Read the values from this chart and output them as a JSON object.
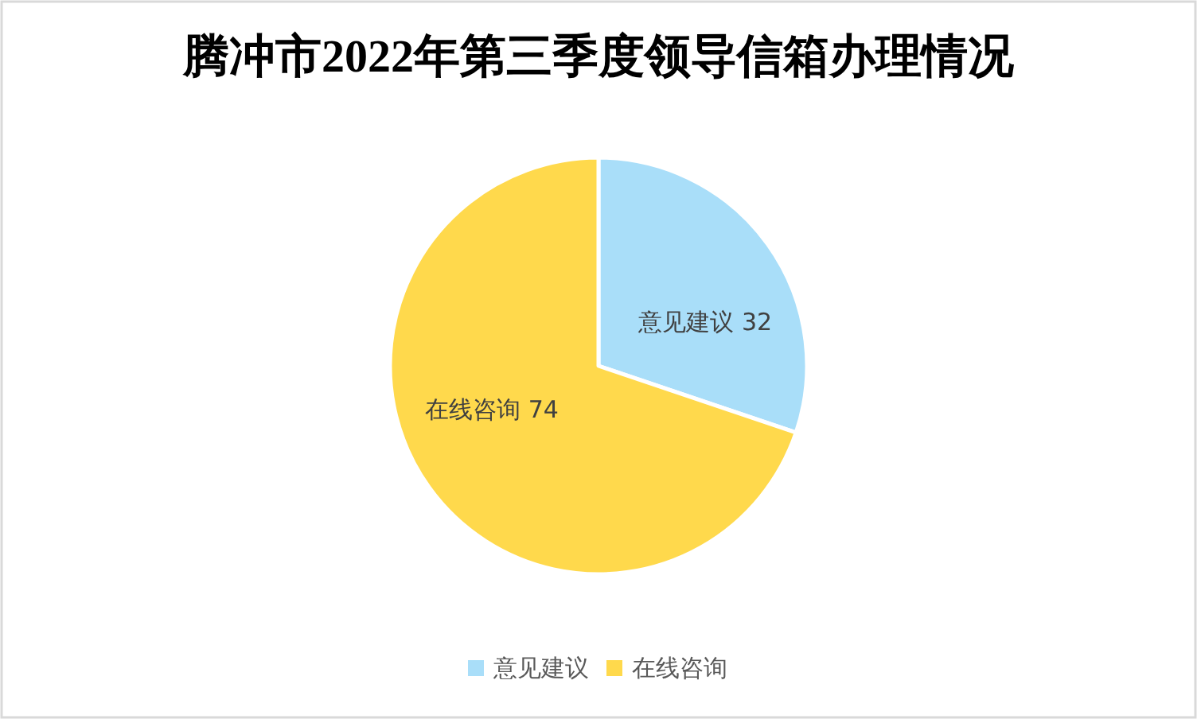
{
  "chart_data": {
    "type": "pie",
    "title": "腾冲市2022年第三季度领导信箱办理情况",
    "categories": [
      "意见建议",
      "在线咨询"
    ],
    "values": [
      32,
      74
    ],
    "colors": [
      "#a9def9",
      "#ffd94c"
    ],
    "data_labels": true,
    "legend": "bottom"
  }
}
